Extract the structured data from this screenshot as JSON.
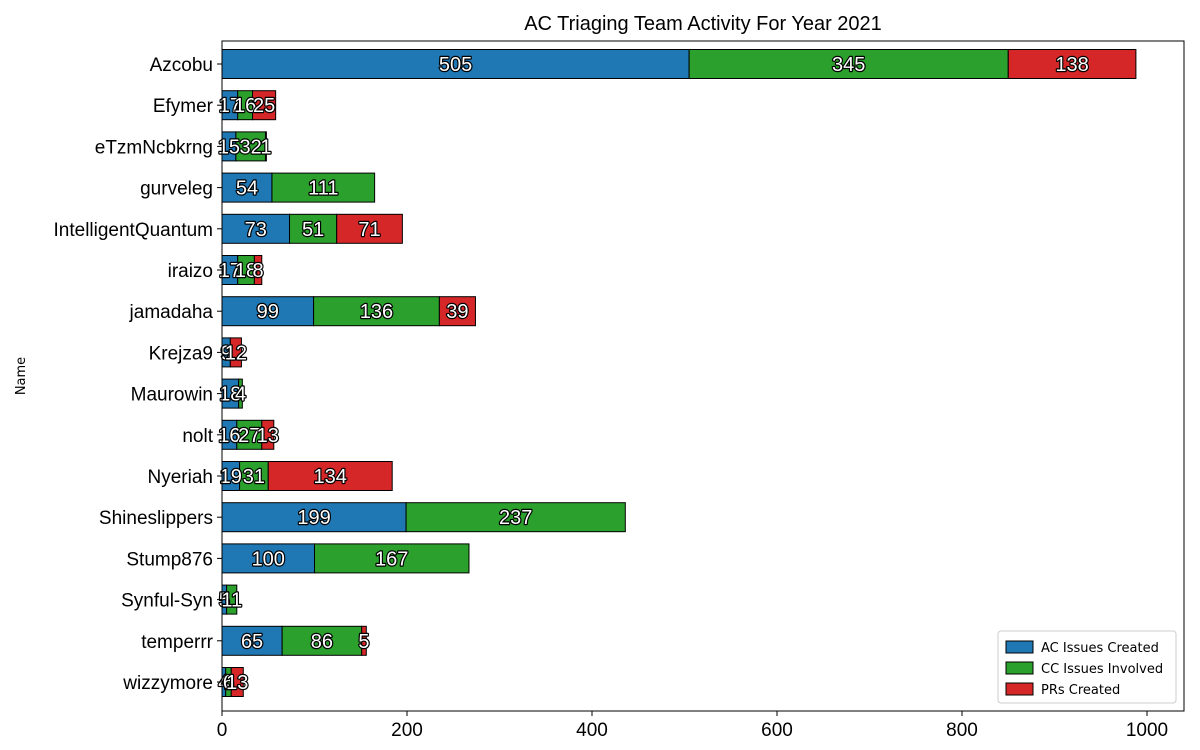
{
  "chart_data": {
    "type": "bar",
    "orientation": "horizontal",
    "stacked": true,
    "title": "AC Triaging Team Activity For Year 2021",
    "xlabel": "",
    "ylabel": "Name",
    "xlim": [
      0,
      1040
    ],
    "xticks": [
      0,
      200,
      400,
      600,
      800,
      1000
    ],
    "grid": false,
    "legend_position": "bottom-right",
    "categories": [
      "Azcobu",
      "Efymer",
      "eTzmNcbkrng",
      "gurveleg",
      "IntelligentQuantum",
      "iraizo",
      "jamadaha",
      "Krejza9",
      "Maurowin",
      "nolt",
      "Nyeriah",
      "Shineslippers",
      "Stump876",
      "Synful-Syn",
      "temperrr",
      "wizzymore"
    ],
    "series": [
      {
        "name": "AC Issues Created",
        "color": "#1f77b4",
        "values": [
          505,
          17,
          15,
          54,
          73,
          17,
          99,
          9,
          18,
          16,
          19,
          199,
          100,
          5,
          65,
          4
        ]
      },
      {
        "name": "CC Issues Involved",
        "color": "#2ca02c",
        "values": [
          345,
          16,
          32,
          111,
          51,
          18,
          136,
          0,
          4,
          27,
          31,
          237,
          167,
          11,
          86,
          6
        ]
      },
      {
        "name": "PRs Created",
        "color": "#d62728",
        "values": [
          138,
          25,
          1,
          0,
          71,
          8,
          39,
          12,
          0,
          13,
          134,
          0,
          0,
          0,
          5,
          13
        ]
      }
    ]
  }
}
